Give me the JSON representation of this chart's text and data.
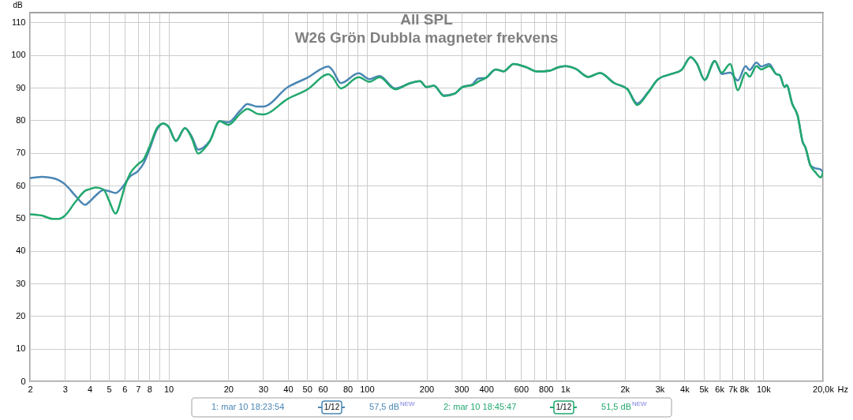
{
  "chart_data": {
    "type": "line",
    "title": "All SPL",
    "subtitle": "W26 Grön Dubbla magneter frekvens",
    "xlabel": "Hz",
    "ylabel": "dB",
    "x": [
      2,
      2.3,
      2.6,
      2.8,
      3,
      3.4,
      3.8,
      4,
      4.3,
      4.7,
      5,
      5.4,
      5.8,
      6,
      6.4,
      7,
      7.5,
      8,
      8.8,
      9.4,
      10,
      10.9,
      12.1,
      13.1,
      14.1,
      15.1,
      16.1,
      18.1,
      20,
      23,
      25,
      28,
      30,
      40,
      50,
      64,
      67,
      74,
      91,
      103,
      116,
      139,
      166,
      185,
      200,
      218,
      245,
      278,
      304,
      341,
      364,
      398,
      447,
      489,
      550,
      640,
      720,
      766,
      838,
      917,
      1000,
      1130,
      1310,
      1500,
      1770,
      2060,
      2310,
      2620,
      2950,
      3440,
      3860,
      4300,
      4620,
      5060,
      5690,
      6170,
      6800,
      7440,
      8140,
      8520,
      9240,
      9750,
      10700,
      11600,
      12100,
      12800,
      13100,
      14000,
      14900,
      15800,
      16300,
      17300,
      18300,
      19500,
      20000
    ],
    "series": [
      {
        "name": "1: mar 10 18:23:54",
        "color": "#4a86b4",
        "values": [
          62.3,
          62.7,
          62.3,
          61.6,
          60.4,
          56.8,
          54.1,
          55.1,
          57.0,
          58.6,
          58.3,
          57.7,
          59.2,
          60.4,
          62.8,
          64.4,
          66.9,
          71.0,
          77.5,
          79.0,
          78.0,
          73.8,
          77.6,
          75.0,
          71.0,
          71.8,
          73.6,
          79.7,
          79.4,
          83.0,
          85.0,
          84.2,
          84.2,
          90.2,
          93.0,
          96.5,
          95.4,
          91.4,
          94.4,
          92.6,
          93.6,
          89.8,
          91.4,
          92.0,
          90.2,
          90.6,
          87.6,
          88.2,
          90.2,
          91.0,
          92.8,
          93.0,
          95.6,
          95.0,
          97.3,
          96.2,
          95.0,
          95.0,
          95.2,
          96.2,
          96.6,
          95.8,
          93.3,
          94.5,
          91.4,
          89.6,
          85.2,
          88.6,
          92.6,
          94.2,
          95.4,
          99.3,
          97.4,
          92.4,
          98.2,
          94.2,
          94.6,
          92.2,
          96.6,
          95.4,
          97.7,
          96.5,
          97.3,
          94.2,
          93.8,
          90.2,
          90.8,
          85.0,
          81.4,
          73.3,
          71.7,
          66.1,
          65.3,
          64.9,
          64.1
        ]
      },
      {
        "name": "2: mar 10 18:45:47",
        "color": "#22a86e",
        "values": [
          51.2,
          50.8,
          49.8,
          49.8,
          50.8,
          55.1,
          58.4,
          58.9,
          59.4,
          58.8,
          55.5,
          51.4,
          56.3,
          59.5,
          63.7,
          66.5,
          68.1,
          71.8,
          77.9,
          79.0,
          78.0,
          73.6,
          77.6,
          74.5,
          69.8,
          71.2,
          73.4,
          79.7,
          78.6,
          82.0,
          83.5,
          82.0,
          81.8,
          86.6,
          89.4,
          94.1,
          93.3,
          89.8,
          93.2,
          91.8,
          93.2,
          89.5,
          91.4,
          92.0,
          90.2,
          90.6,
          87.4,
          88.2,
          90.2,
          90.8,
          91.8,
          93.0,
          95.6,
          95.0,
          97.3,
          96.2,
          95.0,
          95.0,
          95.2,
          96.2,
          96.6,
          95.8,
          93.3,
          94.5,
          91.4,
          89.6,
          84.7,
          88.4,
          92.6,
          94.2,
          95.4,
          99.3,
          97.4,
          92.4,
          98.2,
          94.6,
          97.3,
          89.2,
          94.6,
          93.4,
          96.6,
          95.6,
          96.6,
          94.2,
          93.8,
          90.2,
          90.8,
          85.0,
          81.4,
          73.3,
          71.7,
          66.1,
          64.1,
          62.5,
          64.1
        ]
      }
    ],
    "xlim": [
      2,
      20000
    ],
    "ylim": [
      0,
      113
    ],
    "xticks": [
      2,
      3,
      4,
      5,
      6,
      7,
      8,
      {
        "value": 9,
        "label": null
      },
      10,
      20,
      30,
      40,
      50,
      60,
      {
        "value": 70,
        "label": null
      },
      80,
      {
        "value": 90,
        "label": null
      },
      100,
      200,
      300,
      400,
      {
        "value": 500,
        "label": null
      },
      600,
      {
        "value": 700,
        "label": null
      },
      800,
      {
        "value": 900,
        "label": null
      },
      {
        "value": 1000,
        "label": "1k"
      },
      {
        "value": 2000,
        "label": "2k"
      },
      {
        "value": 3000,
        "label": "3k"
      },
      {
        "value": 4000,
        "label": "4k"
      },
      {
        "value": 5000,
        "label": "5k"
      },
      {
        "value": 6000,
        "label": "6k"
      },
      {
        "value": 7000,
        "label": "7k"
      },
      {
        "value": 8000,
        "label": "8k"
      },
      {
        "value": 9000,
        "label": null
      },
      {
        "value": 10000,
        "label": "10k"
      },
      {
        "value": 20000,
        "label": "20,0k"
      }
    ],
    "yticks": [
      0,
      10,
      20,
      30,
      40,
      50,
      60,
      70,
      80,
      90,
      100,
      110
    ],
    "log": "x",
    "grid": true,
    "legend": "bottom",
    "line_style": "solid",
    "annotations": [
      "1/12",
      "57,5 dB$^{NEW}$",
      "1/12",
      "51,5 dB$^{NEW}$"
    ]
  }
}
